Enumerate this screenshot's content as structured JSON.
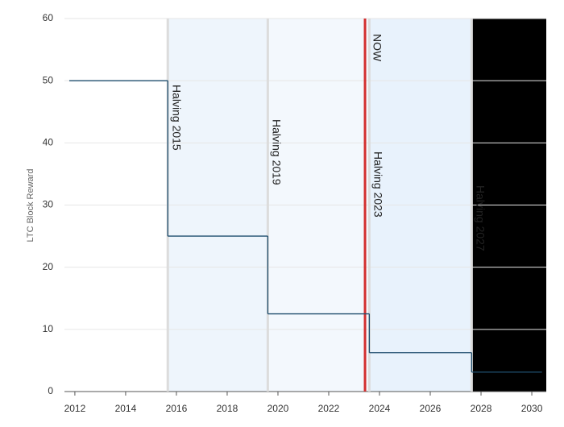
{
  "chart_data": {
    "type": "step",
    "y_label": "LTC Block Reward",
    "x": [
      2011.78,
      2015.66,
      2019.6,
      2023.6,
      2027.63,
      2030.4
    ],
    "series": [
      {
        "name": "LTC Block Reward",
        "color": "#1f4e6e",
        "values": [
          50,
          25,
          12.5,
          6.25,
          3.125,
          3.125
        ]
      }
    ],
    "xlim": [
      2011.59,
      2030.57
    ],
    "ylim": [
      0,
      60
    ],
    "xticks": [
      2012,
      2014,
      2016,
      2018,
      2020,
      2022,
      2024,
      2026,
      2028,
      2030
    ],
    "yticks": [
      0,
      10,
      20,
      30,
      40,
      50,
      60
    ],
    "grid": true,
    "halvings": [
      {
        "label": "Halving 2015",
        "x": 2015.66
      },
      {
        "label": "Halving 2019",
        "x": 2019.6
      },
      {
        "label": "Halving 2023",
        "x": 2023.6
      },
      {
        "label": "Halving 2027",
        "x": 2027.63
      }
    ],
    "halving_color": "#dcdcdc",
    "band_colors": [
      "#ffffff",
      "#eef5fc",
      "#f3f8fd",
      "#e8f2fc"
    ],
    "now": {
      "label": "NOW",
      "x": 2023.43,
      "color": "#d32f2f"
    }
  }
}
